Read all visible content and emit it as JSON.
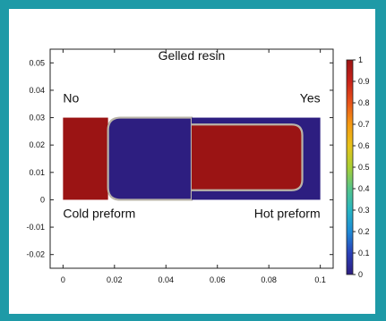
{
  "chart_data": {
    "type": "heatmap",
    "title": "Gelled resin",
    "xlabel": "",
    "ylabel": "",
    "xlim": [
      -0.005,
      0.105
    ],
    "ylim": [
      -0.025,
      0.055
    ],
    "x_ticks": [
      0,
      0.02,
      0.04,
      0.06,
      0.08,
      0.1
    ],
    "x_tick_labels": [
      "0",
      "0.02",
      "0.04",
      "0.06",
      "0.08",
      "0.1"
    ],
    "y_ticks": [
      -0.02,
      -0.01,
      0,
      0.01,
      0.02,
      0.03,
      0.04,
      0.05
    ],
    "y_tick_labels": [
      "-0.02",
      "-0.01",
      "0",
      "0.01",
      "0.02",
      "0.03",
      "0.04",
      "0.05"
    ],
    "grid": false,
    "domain": {
      "x": [
        0,
        0.1
      ],
      "y": [
        0,
        0.03
      ]
    },
    "field_regions": [
      {
        "name": "cold-preform-gelled-zone",
        "value": 1,
        "x": [
          0,
          0.0175
        ],
        "y": [
          0,
          0.03
        ]
      },
      {
        "name": "cold-preform-ungelled-core",
        "value": 0,
        "x": [
          0.0175,
          0.05
        ],
        "y": [
          0,
          0.03
        ]
      },
      {
        "name": "hot-preform-ungelled-zone",
        "value": 0,
        "x": [
          0.05,
          0.1
        ],
        "y": [
          0,
          0.03
        ]
      },
      {
        "name": "hot-preform-gelled-core",
        "value": 1,
        "x": [
          0.05,
          0.093
        ],
        "y": [
          0.0035,
          0.0275
        ]
      }
    ],
    "colorbar": {
      "min": 0,
      "max": 1,
      "ticks": [
        0,
        0.1,
        0.2,
        0.3,
        0.4,
        0.5,
        0.6,
        0.7,
        0.8,
        0.9,
        1
      ],
      "tick_labels": [
        "0",
        "0.1",
        "0.2",
        "0.3",
        "0.4",
        "0.5",
        "0.6",
        "0.7",
        "0.8",
        "0.9",
        "1"
      ],
      "colors": [
        "#2d1e80",
        "#2a40b8",
        "#1f8ad6",
        "#27b5c2",
        "#55c48a",
        "#a8cf34",
        "#e7c21a",
        "#f59a12",
        "#e8541a",
        "#c8221a",
        "#9b1414"
      ]
    },
    "annotations": [
      {
        "text": "No",
        "x": 0,
        "y": 0.0355,
        "anchor": "start"
      },
      {
        "text": "Yes",
        "x": 0.1,
        "y": 0.0355,
        "anchor": "end"
      },
      {
        "text": "Cold preform",
        "x": 0,
        "y": -0.0065,
        "anchor": "start"
      },
      {
        "text": "Hot preform",
        "x": 0.1,
        "y": -0.0065,
        "anchor": "end"
      }
    ]
  }
}
